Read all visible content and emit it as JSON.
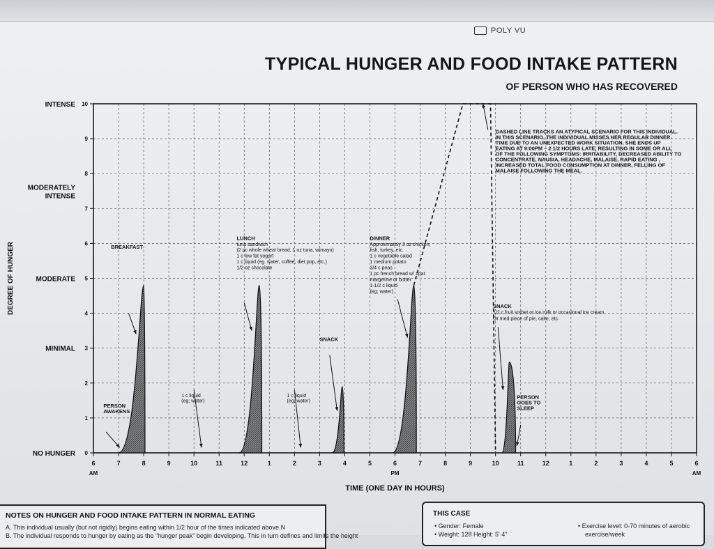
{
  "header": {
    "brand": "POLY VU",
    "title": "TYPICAL HUNGER AND FOOD INTAKE PATTERN",
    "subtitle": "OF PERSON WHO HAS RECOVERED"
  },
  "chart_data": {
    "type": "area",
    "title": "TYPICAL HUNGER AND FOOD INTAKE PATTERN",
    "subtitle": "OF PERSON WHO HAS RECOVERED",
    "xlabel": "TIME (ONE DAY IN HOURS)",
    "ylabel": "DEGREE OF HUNGER",
    "ylim": [
      0,
      10
    ],
    "xlim": [
      6,
      30
    ],
    "grid": true,
    "x_ticks": [
      {
        "v": 6,
        "label": "6",
        "sub": "AM"
      },
      {
        "v": 7,
        "label": "7"
      },
      {
        "v": 8,
        "label": "8"
      },
      {
        "v": 9,
        "label": "9"
      },
      {
        "v": 10,
        "label": "10"
      },
      {
        "v": 11,
        "label": "11"
      },
      {
        "v": 12,
        "label": "12"
      },
      {
        "v": 13,
        "label": "1"
      },
      {
        "v": 14,
        "label": "2"
      },
      {
        "v": 15,
        "label": "3"
      },
      {
        "v": 16,
        "label": "4"
      },
      {
        "v": 17,
        "label": "5"
      },
      {
        "v": 18,
        "label": "6",
        "sub": "PM"
      },
      {
        "v": 19,
        "label": "7"
      },
      {
        "v": 20,
        "label": "8"
      },
      {
        "v": 21,
        "label": "9"
      },
      {
        "v": 22,
        "label": "10"
      },
      {
        "v": 23,
        "label": "11"
      },
      {
        "v": 24,
        "label": "12"
      },
      {
        "v": 25,
        "label": "1"
      },
      {
        "v": 26,
        "label": "2"
      },
      {
        "v": 27,
        "label": "3"
      },
      {
        "v": 28,
        "label": "4"
      },
      {
        "v": 29,
        "label": "5"
      },
      {
        "v": 30,
        "label": "6",
        "sub": "AM"
      }
    ],
    "y_ticks": [
      0,
      1,
      2,
      3,
      4,
      5,
      6,
      7,
      8,
      9,
      10
    ],
    "y_categories": [
      {
        "v": 0,
        "label": "NO HUNGER"
      },
      {
        "v": 3,
        "label": "MINIMAL"
      },
      {
        "v": 5,
        "label": "MODERATE"
      },
      {
        "v": 7.5,
        "label": "MODERATELY INTENSE"
      },
      {
        "v": 10,
        "label": "INTENSE"
      }
    ],
    "series": [
      {
        "style": "solid",
        "peaks": [
          {
            "start": 7.0,
            "peak": 8.0,
            "end": 8.05,
            "value": 4.8
          },
          {
            "start": 11.8,
            "peak": 12.6,
            "end": 12.7,
            "value": 4.8
          },
          {
            "start": 15.5,
            "peak": 15.9,
            "end": 15.97,
            "value": 1.9
          },
          {
            "start": 17.9,
            "peak": 18.75,
            "end": 18.85,
            "value": 4.8
          },
          {
            "start": 22.25,
            "peak": 22.55,
            "end": 22.8,
            "value": 2.6
          }
        ]
      },
      {
        "style": "dashed",
        "points": [
          [
            18.75,
            4.8
          ],
          [
            20.7,
            10
          ],
          [
            21.8,
            10
          ],
          [
            22.0,
            0
          ]
        ]
      }
    ],
    "annotations": [
      {
        "text": "BREAKFAST",
        "x": 6.7,
        "y": 5.85
      },
      {
        "text": "LUNCH",
        "x": 11.7,
        "y": 6.1
      },
      {
        "text": "tuna sandwich",
        "x": 11.7,
        "y": 5.93
      },
      {
        "text": "(2 pc whole wheat bread, 1 oz tuna, w/mayo)",
        "x": 11.7,
        "y": 5.77
      },
      {
        "text": "1 c low fat yogurt",
        "x": 11.7,
        "y": 5.6
      },
      {
        "text": "1 c liquid (eg. water, coffee, diet pop, etc.)",
        "x": 11.7,
        "y": 5.43
      },
      {
        "text": "1/2 oz chocolate",
        "x": 11.7,
        "y": 5.26
      },
      {
        "text": "DINNER",
        "x": 17.0,
        "y": 6.1
      },
      {
        "text": "Approximately 3 oz chicken,",
        "x": 17.0,
        "y": 5.93
      },
      {
        "text": "fish, turkey, etc.",
        "x": 17.0,
        "y": 5.77
      },
      {
        "text": "1 c vegetable salad",
        "x": 17.0,
        "y": 5.6
      },
      {
        "text": "1 medium potato",
        "x": 17.0,
        "y": 5.43
      },
      {
        "text": "3/4 c peas",
        "x": 17.0,
        "y": 5.26
      },
      {
        "text": "1 pc french bread w/ 1pat",
        "x": 17.0,
        "y": 5.09
      },
      {
        "text": "margerine or butter",
        "x": 17.0,
        "y": 4.92
      },
      {
        "text": "1-1/2 c liquid",
        "x": 17.0,
        "y": 4.75
      },
      {
        "text": "(eg; water)",
        "x": 17.0,
        "y": 4.58
      },
      {
        "text": "SNACK",
        "x": 15.0,
        "y": 3.2
      },
      {
        "text": "SNACK",
        "x": 21.9,
        "y": 4.15
      },
      {
        "text": "1/2 c fruit sorbet or ice milk or occasional ice cream",
        "x": 21.9,
        "y": 3.98
      },
      {
        "text": "Or med piece of pie, cake, etc.",
        "x": 21.9,
        "y": 3.8
      },
      {
        "text": "1 c liquid",
        "x": 9.5,
        "y": 1.6
      },
      {
        "text": "(eg; water)",
        "x": 9.5,
        "y": 1.45
      },
      {
        "text": "1 c liquid",
        "x": 13.7,
        "y": 1.6
      },
      {
        "text": "(eg; water)",
        "x": 13.7,
        "y": 1.45
      },
      {
        "text": "PERSON",
        "x": 6.4,
        "y": 1.3
      },
      {
        "text": "AWAKENS",
        "x": 6.4,
        "y": 1.14
      },
      {
        "text": "PERSON",
        "x": 22.85,
        "y": 1.55
      },
      {
        "text": "GOES TO",
        "x": 22.85,
        "y": 1.39
      },
      {
        "text": "SLEEP",
        "x": 22.85,
        "y": 1.23
      },
      {
        "text": "DASHED LINE TRACKS AN ATYPICAL SCENARIO FOR THIS INDIVIDUAL.",
        "x": 22.0,
        "y": 9.15
      },
      {
        "text": "IN THIS SCENARIO, THE INDIVIDUAL MISSES HER REGULAR DINNER",
        "x": 22.0,
        "y": 8.99
      },
      {
        "text": "TIME DUE TO AN UNEXPECTED WORK SITUATION. SHE ENDS UP",
        "x": 22.0,
        "y": 8.83
      },
      {
        "text": "EATING AT 9:00PM – 2 1/2 HOURS LATE, RESULTING IN SOME OR ALL",
        "x": 22.0,
        "y": 8.67
      },
      {
        "text": "OF THE FOLLOWING SYMPTOMS: IRRITABILITY, DECREASED ABILITY TO",
        "x": 22.0,
        "y": 8.51
      },
      {
        "text": "CONCENTRATE, NAUSIA, HEADACHE, MALAISE, RAPID EATING ,",
        "x": 22.0,
        "y": 8.35
      },
      {
        "text": "INCREASED TOTAL FOOD CONSUMPTION AT DINNER, FELLING OF",
        "x": 22.0,
        "y": 8.19
      },
      {
        "text": "MALAISE FOLLOWING THE MEAL.",
        "x": 22.0,
        "y": 8.03
      }
    ],
    "arrows": [
      {
        "from": [
          7.4,
          4.0
        ],
        "to": [
          7.7,
          3.4
        ]
      },
      {
        "from": [
          12.0,
          4.3
        ],
        "to": [
          12.3,
          3.5
        ]
      },
      {
        "from": [
          15.4,
          2.8
        ],
        "to": [
          15.7,
          1.2
        ]
      },
      {
        "from": [
          18.1,
          4.4
        ],
        "to": [
          18.5,
          3.3
        ]
      },
      {
        "from": [
          22.1,
          3.6
        ],
        "to": [
          22.3,
          1.8
        ]
      },
      {
        "from": [
          6.5,
          0.6
        ],
        "to": [
          7.05,
          0.15
        ]
      },
      {
        "from": [
          10.0,
          1.8
        ],
        "to": [
          10.3,
          0.15
        ]
      },
      {
        "from": [
          14.0,
          1.8
        ],
        "to": [
          14.25,
          0.15
        ]
      },
      {
        "from": [
          23.0,
          0.8
        ],
        "to": [
          22.85,
          0.2
        ]
      },
      {
        "from": [
          21.7,
          9.25
        ],
        "to": [
          21.5,
          10.0
        ]
      }
    ]
  },
  "notes": {
    "title": "NOTES ON HUNGER AND FOOD INTAKE PATTERN IN NORMAL EATING",
    "line_a": "A. This individual usually (but not rigidly) begins eating within 1/2 hour of the times indicated above.N",
    "line_b": "B. The individual responds to hunger by eating as the \"hunger peak\" begin developing. This in turn defines and limits the height"
  },
  "this_case": {
    "title": "THIS CASE",
    "gender": "• Gender: Female",
    "weight": "• Weight: 128  Height: 5' 4\"",
    "exercise_1": "• Exercise level: 0-70 minutes of aerobic",
    "exercise_2": "exercise/week"
  }
}
